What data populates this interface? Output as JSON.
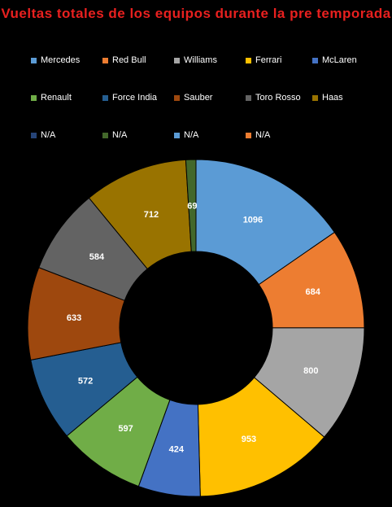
{
  "chart_data": {
    "type": "donut",
    "title": "Vueltas totales de los equipos durante la pre temporada",
    "categories": [
      "Mercedes",
      "Red Bull",
      "Williams",
      "Ferrari",
      "McLaren",
      "Renault",
      "Force India",
      "Sauber",
      "Toro Rosso",
      "Haas",
      "N/A",
      "N/A",
      "N/A",
      "N/A"
    ],
    "values": [
      1096,
      684,
      800,
      953,
      424,
      597,
      572,
      633,
      584,
      712,
      0,
      69,
      0,
      0
    ],
    "colors": [
      "#5b9bd5",
      "#ed7d31",
      "#a5a5a5",
      "#ffc000",
      "#4472c4",
      "#70ad47",
      "#255e91",
      "#9e480e",
      "#636363",
      "#997300",
      "#264478",
      "#43682b",
      "#5b9bd5",
      "#ed7d31"
    ],
    "legend_position": "top"
  }
}
